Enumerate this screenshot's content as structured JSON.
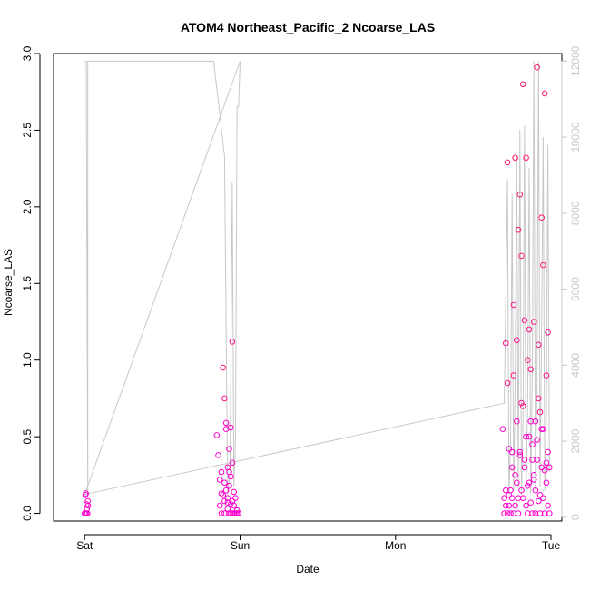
{
  "chart_data": {
    "type": "scatter",
    "title": "ATOM4 Northeast_Pacific_2 Ncoarse_LAS",
    "xlabel": "Date",
    "ylabel": "Ncoarse_LAS",
    "x_ticks": [
      "Sat",
      "Sun",
      "Mon",
      "Tue"
    ],
    "xlim_days": [
      -0.2,
      3.07
    ],
    "ylim": [
      -0.05,
      3.0
    ],
    "y_ticks": [
      "0.0",
      "0.5",
      "1.0",
      "1.5",
      "2.0",
      "2.5",
      "3.0"
    ],
    "y2lim": [
      -100,
      12200
    ],
    "y2_ticks": [
      "0",
      "2000",
      "4000",
      "6000",
      "8000",
      "10000",
      "12000"
    ],
    "grid": false,
    "legend": "none",
    "colors": {
      "axis": "#000000",
      "line": "#c8c8c8",
      "right_axis": "#c8c8c8",
      "point_low": "#ff00cc",
      "point_high": "#ff1a66"
    },
    "series": [
      {
        "kind": "line",
        "axis": "right",
        "x": [
          0.0,
          0.01,
          0.02,
          0.02,
          0.83,
          0.9,
          0.92,
          0.935,
          0.95,
          0.96,
          0.97,
          0.98,
          0.98,
          0.99,
          1.0,
          0.0,
          2.7,
          2.7,
          2.72,
          2.73,
          2.74,
          2.75,
          2.76,
          2.77,
          2.78,
          2.79,
          2.8,
          2.81,
          2.82,
          2.83,
          2.84,
          2.85,
          2.86,
          2.87,
          2.88,
          2.89,
          2.9,
          2.91,
          2.92,
          2.93,
          2.94,
          2.95,
          2.96,
          2.97,
          2.98,
          2.99
        ],
        "y": [
          12000,
          12000,
          600,
          12000,
          12000,
          9500,
          600,
          1200,
          8800,
          800,
          2000,
          10500,
          10800,
          10800,
          12000,
          600,
          3000,
          3000,
          8900,
          600,
          2000,
          8500,
          700,
          3500,
          9500,
          800,
          10200,
          600,
          2500,
          10300,
          700,
          3000,
          9200,
          600,
          4000,
          12000,
          700,
          3500,
          12000,
          800,
          5000,
          10000,
          700,
          2500,
          9800,
          1200
        ]
      },
      {
        "kind": "points",
        "axis": "left",
        "x": [
          0.0,
          0.005,
          0.01,
          0.012,
          0.015,
          0.02,
          0.022,
          0.018,
          0.008,
          0.003
        ],
        "y": [
          0.0,
          0.12,
          0.0,
          0.06,
          0.03,
          0.08,
          0.05,
          0.0,
          0.13,
          0.0
        ]
      },
      {
        "kind": "points",
        "axis": "left",
        "x": [
          0.85,
          0.86,
          0.87,
          0.87,
          0.88,
          0.88,
          0.89,
          0.89,
          0.9,
          0.9,
          0.9,
          0.91,
          0.91,
          0.91,
          0.92,
          0.92,
          0.92,
          0.93,
          0.93,
          0.93,
          0.94,
          0.94,
          0.94,
          0.95,
          0.95,
          0.95,
          0.96,
          0.96,
          0.97,
          0.97,
          0.98,
          0.98,
          0.99,
          0.99,
          0.95,
          0.93,
          0.96,
          0.94,
          0.9,
          0.88,
          0.92,
          0.97
        ],
        "y": [
          0.51,
          0.38,
          0.22,
          0.05,
          0.27,
          0.0,
          0.12,
          0.95,
          0.75,
          0.08,
          0.0,
          0.59,
          0.55,
          0.15,
          0.03,
          0.3,
          0.1,
          0.42,
          0.18,
          0.0,
          0.56,
          0.24,
          0.06,
          1.12,
          0.08,
          0.0,
          0.14,
          0.0,
          0.1,
          0.0,
          0.02,
          0.0,
          0.0,
          0.0,
          0.33,
          0.27,
          0.05,
          0.0,
          0.2,
          0.13,
          0.07,
          0.0
        ]
      },
      {
        "kind": "points",
        "axis": "left",
        "x": [
          2.69,
          2.7,
          2.7,
          2.71,
          2.71,
          2.72,
          2.72,
          2.73,
          2.73,
          2.74,
          2.75,
          2.75,
          2.76,
          2.76,
          2.77,
          2.77,
          2.78,
          2.78,
          2.79,
          2.79,
          2.8,
          2.8,
          2.81,
          2.81,
          2.82,
          2.82,
          2.83,
          2.83,
          2.84,
          2.84,
          2.85,
          2.85,
          2.86,
          2.86,
          2.87,
          2.87,
          2.88,
          2.88,
          2.89,
          2.89,
          2.9,
          2.9,
          2.91,
          2.91,
          2.92,
          2.92,
          2.93,
          2.93,
          2.94,
          2.94,
          2.95,
          2.95,
          2.96,
          2.96,
          2.97,
          2.97,
          2.98,
          2.98,
          2.99,
          2.99,
          2.72,
          2.74,
          2.76,
          2.78,
          2.8,
          2.82,
          2.84,
          2.86,
          2.88,
          2.9,
          2.92,
          2.94,
          2.96,
          2.98,
          2.71,
          2.73,
          2.75,
          2.77,
          2.79,
          2.81,
          2.83,
          2.85,
          2.87,
          2.89,
          2.91,
          2.93,
          2.95,
          2.97
        ],
        "y": [
          0.55,
          0.0,
          0.1,
          1.11,
          0.05,
          2.29,
          0.0,
          0.12,
          0.42,
          0.0,
          0.1,
          0.3,
          0.0,
          1.36,
          2.32,
          0.05,
          1.13,
          0.2,
          0.0,
          1.85,
          2.08,
          0.4,
          1.68,
          0.15,
          2.8,
          0.7,
          1.26,
          0.3,
          0.05,
          2.32,
          1.0,
          0.18,
          1.2,
          0.5,
          0.07,
          0.94,
          0.45,
          0.0,
          1.25,
          0.25,
          0.6,
          0.0,
          2.91,
          0.35,
          1.1,
          0.08,
          0.66,
          0.0,
          1.93,
          0.3,
          0.55,
          0.1,
          2.74,
          0.0,
          0.9,
          0.2,
          1.18,
          0.4,
          0.3,
          0.0,
          0.85,
          0.15,
          0.9,
          0.6,
          0.38,
          0.1,
          0.5,
          0.2,
          0.35,
          0.15,
          0.75,
          0.55,
          0.28,
          0.05,
          0.15,
          0.05,
          0.4,
          0.25,
          0.1,
          0.72,
          0.35,
          0.0,
          0.6,
          0.22,
          0.48,
          0.12,
          1.62,
          0.33
        ]
      }
    ]
  }
}
